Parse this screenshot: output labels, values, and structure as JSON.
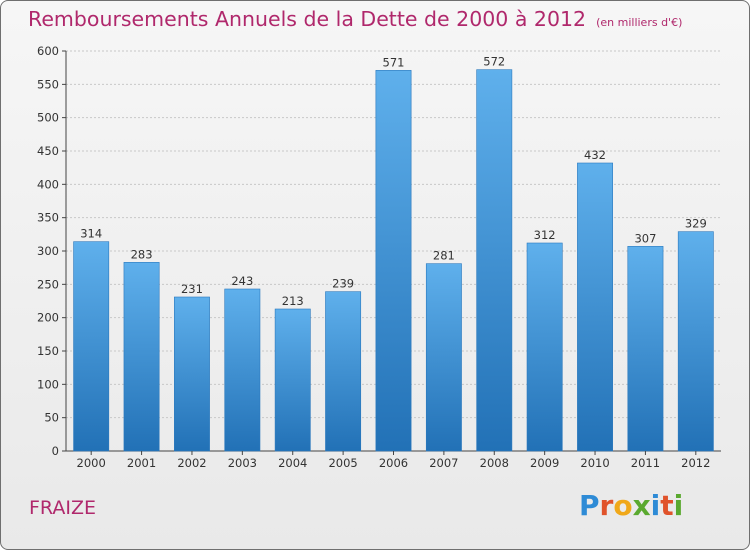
{
  "title": "Remboursements Annuels de la Dette de 2000 à 2012",
  "subtitle": "(en milliers d'€)",
  "commune": "FRAIZE",
  "logo": {
    "letters": [
      "P",
      "r",
      "o",
      "x",
      "i",
      "t",
      "i"
    ],
    "colors": [
      "#2e8bd6",
      "#e0532b",
      "#f0a81a",
      "#5aa92f",
      "#2e8bd6",
      "#e0532b",
      "#5aa92f"
    ]
  },
  "colors": {
    "title": "#b0286c",
    "bar_top": "#5fb0ec",
    "bar_bottom": "#2271b6",
    "axis": "#444444",
    "grid": "#c8c8c8"
  },
  "chart_data": {
    "type": "bar",
    "categories": [
      "2000",
      "2001",
      "2002",
      "2003",
      "2004",
      "2005",
      "2006",
      "2007",
      "2008",
      "2009",
      "2010",
      "2011",
      "2012"
    ],
    "values": [
      314,
      283,
      231,
      243,
      213,
      239,
      571,
      281,
      572,
      312,
      432,
      307,
      329
    ],
    "ylim": [
      0,
      600
    ],
    "yticks": [
      0,
      50,
      100,
      150,
      200,
      250,
      300,
      350,
      400,
      450,
      500,
      550,
      600
    ],
    "grid": true,
    "data_labels": true
  }
}
